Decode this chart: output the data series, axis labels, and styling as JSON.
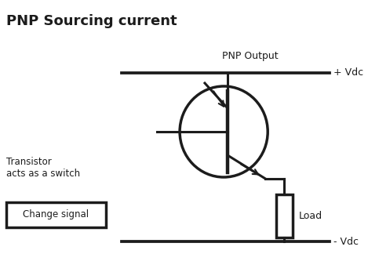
{
  "title": "PNP Sourcing current",
  "title_fontsize": 13,
  "title_fontweight": "bold",
  "bg_color": "#ffffff",
  "line_color": "#1c1c1c",
  "text_color": "#1c1c1c",
  "label_pnp_output": "PNP Output",
  "label_plus_vdc": "+ Vdc",
  "label_minus_vdc": "- Vdc",
  "label_load": "Load",
  "label_transistor_line1": "Transistor",
  "label_transistor_line2": "acts as a switch",
  "label_change_signal": "Change signal",
  "lw": 2.2
}
